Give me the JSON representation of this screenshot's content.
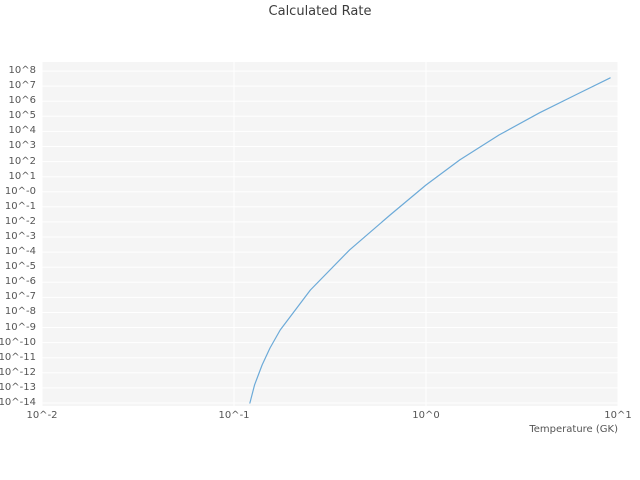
{
  "chart_data": {
    "type": "line",
    "title": "Calculated Rate",
    "xlabel": "Temperature (GK)",
    "ylabel": "",
    "xscale": "log",
    "yscale": "log",
    "grid": true,
    "legend": false,
    "xlim_log": [
      -2,
      1
    ],
    "ylim_log": [
      -14.2,
      8.6
    ],
    "x_tick_exponents": [
      -2,
      -1,
      0,
      1
    ],
    "x_tick_labels": [
      "10^-2",
      "10^-1",
      "10^0",
      "10^1"
    ],
    "y_tick_exponents": [
      8,
      7,
      6,
      5,
      4,
      3,
      2,
      1,
      0,
      -1,
      -2,
      -3,
      -4,
      -5,
      -6,
      -7,
      -8,
      -9,
      -10,
      -11,
      -12,
      -13,
      -14
    ],
    "y_tick_labels": [
      "10^8",
      "10^7",
      "10^6",
      "10^5",
      "10^4",
      "10^3",
      "10^2",
      "10^1",
      "10^-0",
      "10^-1",
      "10^-2",
      "10^-3",
      "10^-4",
      "10^-5",
      "10^-6",
      "10^-7",
      "10^-8",
      "10^-9",
      "10^-10",
      "10^-11",
      "10^-12",
      "10^-13",
      "10^-14"
    ],
    "colors": {
      "line": "#6caad8",
      "plot_background": "#f5f5f5",
      "grid": "#ffffff",
      "text": "#555555"
    },
    "series": [
      {
        "name": "Calculated Rate",
        "color": "#6caad8",
        "x": [
          0.121,
          0.128,
          0.14,
          0.154,
          0.174,
          0.25,
          0.4,
          0.65,
          1.0,
          1.5,
          2.4,
          3.9,
          6.0,
          9.1
        ],
        "y": [
          1e-14,
          1.6e-13,
          3.3e-12,
          4.4e-11,
          6.9e-10,
          3.1e-07,
          0.00014,
          0.029,
          2.8,
          130.0,
          5800.0,
          170000.0,
          2600000.0,
          35000000.0
        ]
      }
    ]
  }
}
